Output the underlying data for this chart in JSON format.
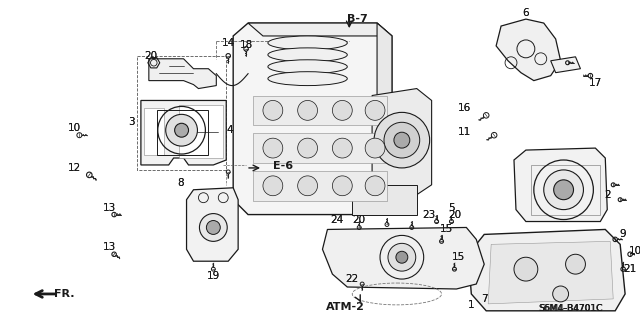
{
  "bg": "#ffffff",
  "fg": "#1a1a1a",
  "lw_main": 1.0,
  "lw_thin": 0.6,
  "label_fs": 7.5,
  "small_fs": 6.5,
  "bold_labels": [
    "B-7",
    "E-6",
    "ATM-2"
  ],
  "diagram_id": "S6M4-B4701C",
  "figsize": [
    6.4,
    3.19
  ],
  "dpi": 100
}
